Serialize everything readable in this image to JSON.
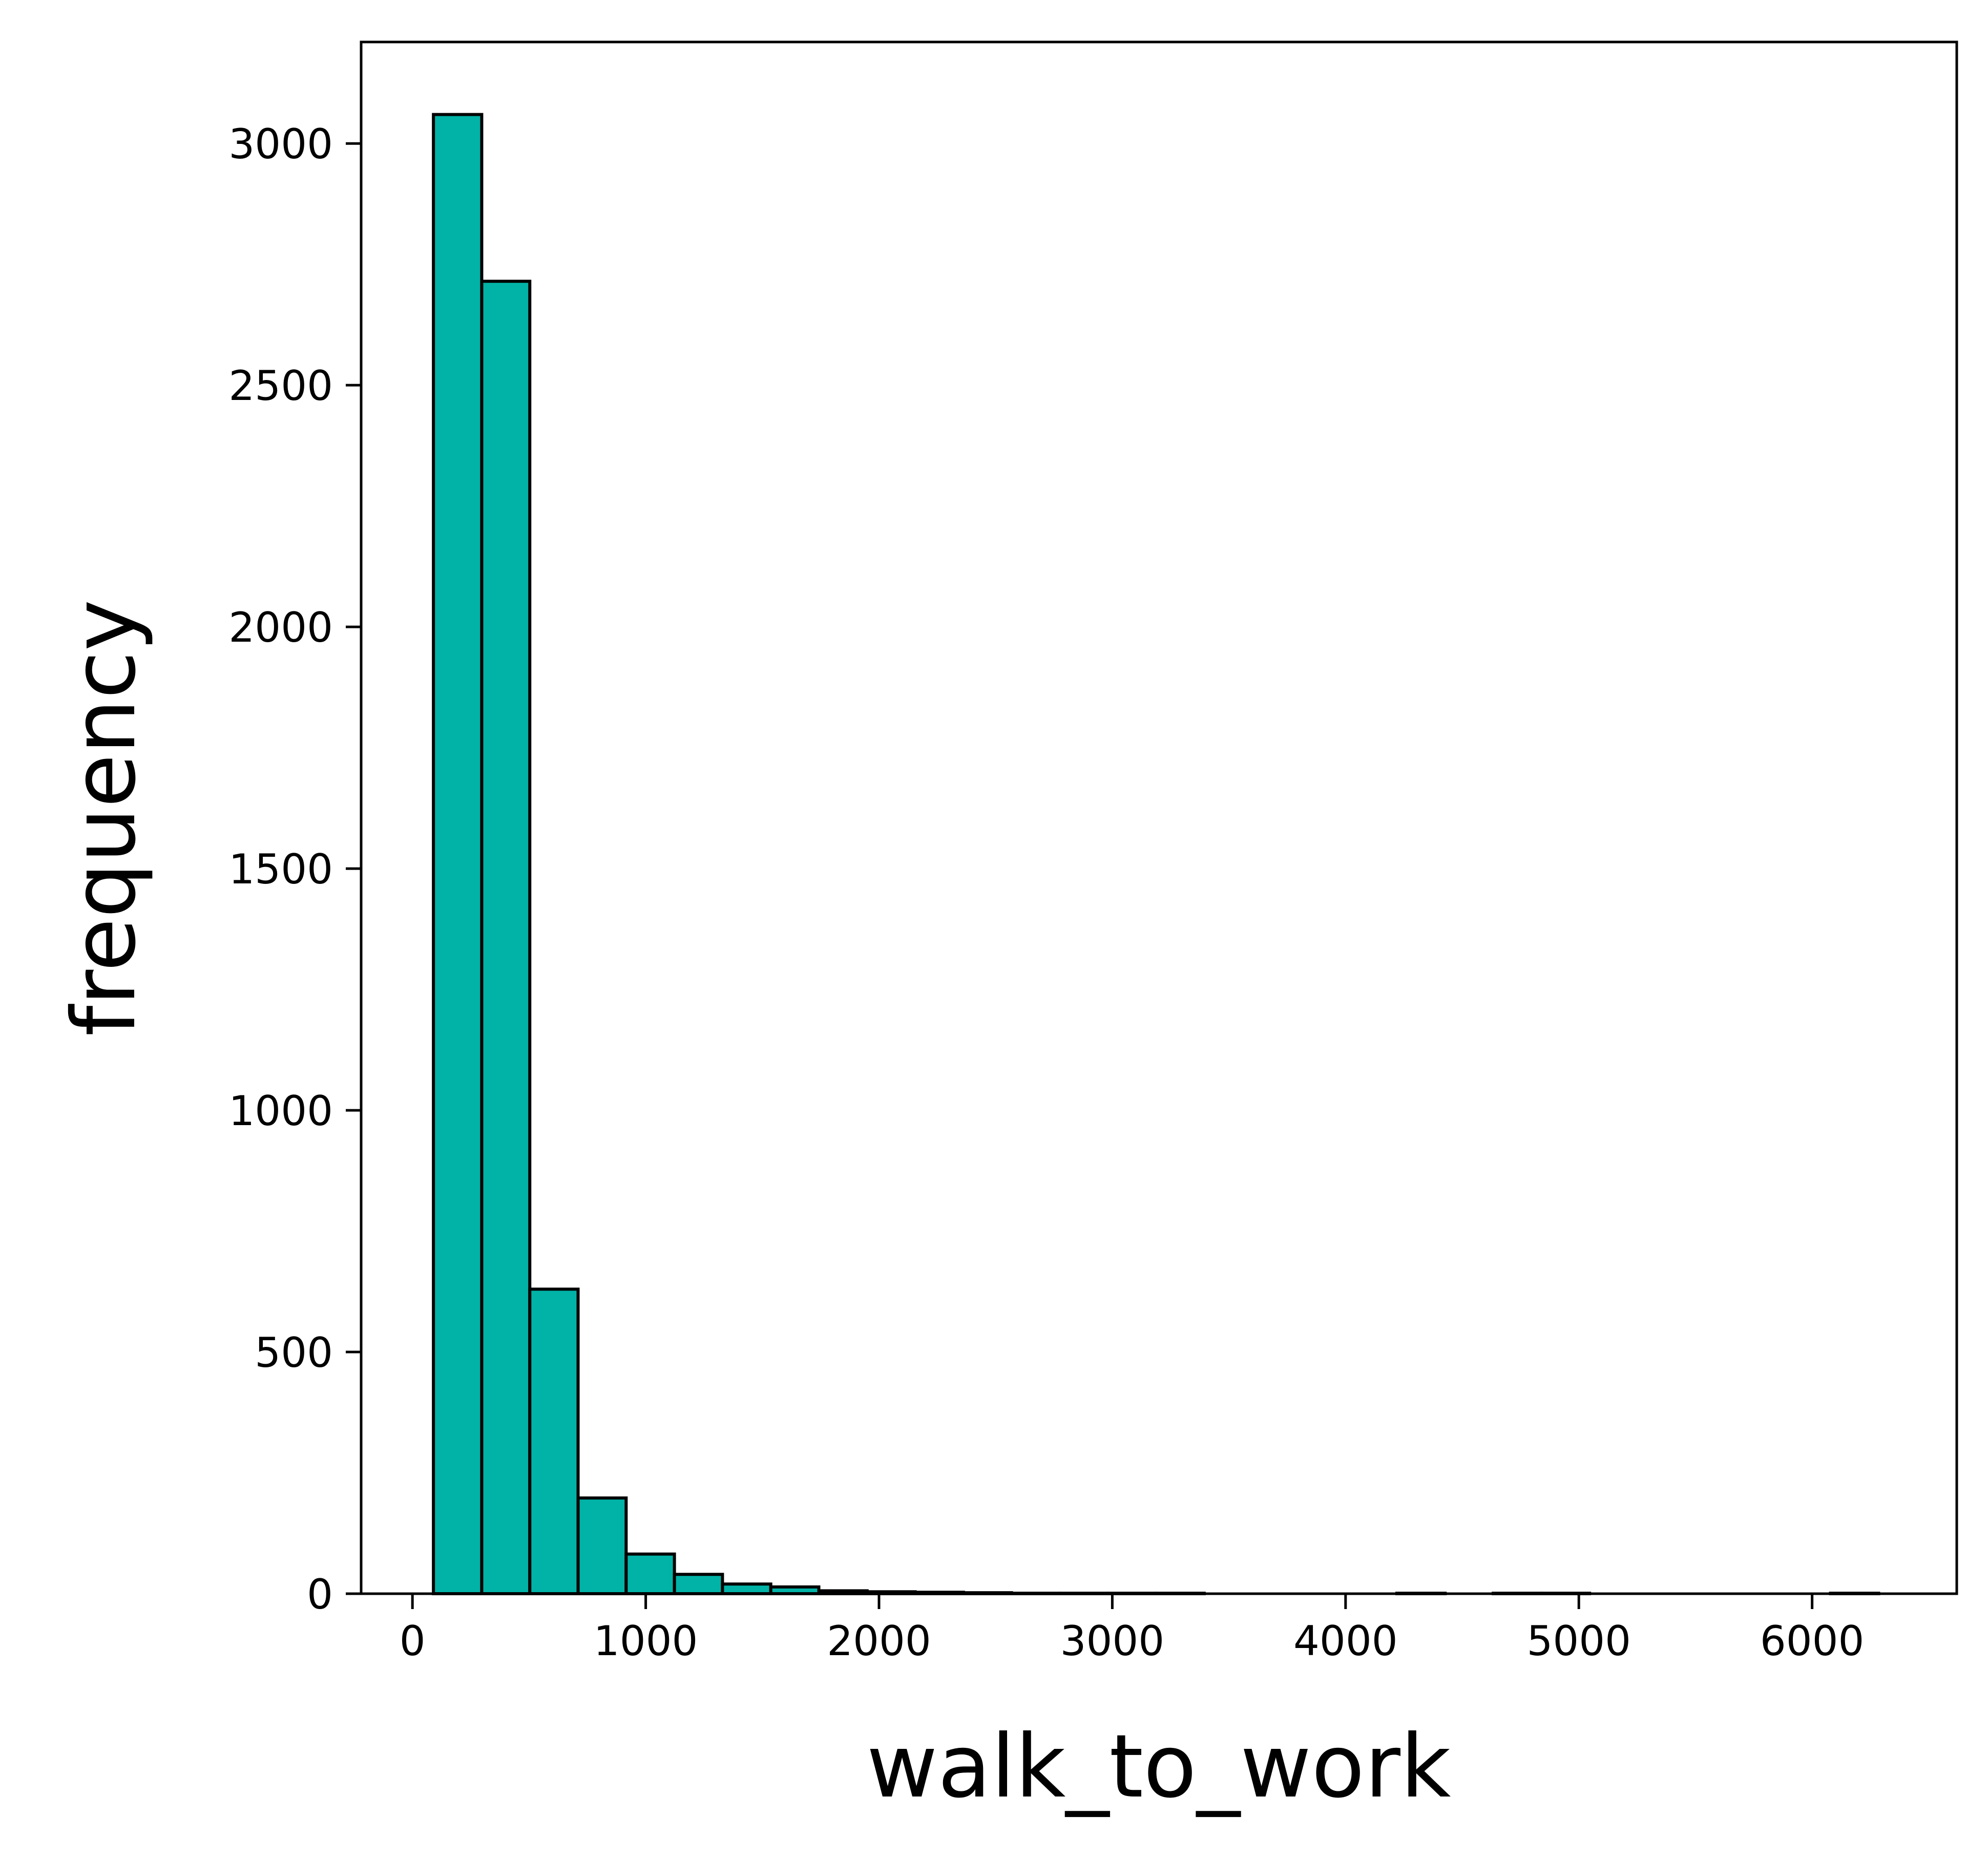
{
  "chart_data": {
    "type": "bar",
    "subtype": "histogram",
    "xlabel": "walk_to_work",
    "ylabel": "frequency",
    "xlim": [
      -220,
      6620
    ],
    "ylim": [
      0,
      3210
    ],
    "xticks": [
      0,
      1000,
      2000,
      3000,
      4000,
      5000,
      6000
    ],
    "yticks": [
      0,
      500,
      1000,
      1500,
      2000,
      2500,
      3000
    ],
    "grid": false,
    "legend": null,
    "bar_color": "#00b3a6",
    "edge_color": "#000000",
    "bins": [
      {
        "x0": 90,
        "x1": 297,
        "count": 3060
      },
      {
        "x0": 297,
        "x1": 503,
        "count": 2715
      },
      {
        "x0": 503,
        "x1": 710,
        "count": 630
      },
      {
        "x0": 710,
        "x1": 916,
        "count": 198
      },
      {
        "x0": 916,
        "x1": 1123,
        "count": 82
      },
      {
        "x0": 1123,
        "x1": 1329,
        "count": 40
      },
      {
        "x0": 1329,
        "x1": 1536,
        "count": 20
      },
      {
        "x0": 1536,
        "x1": 1742,
        "count": 14
      },
      {
        "x0": 1742,
        "x1": 1949,
        "count": 6
      },
      {
        "x0": 1949,
        "x1": 2155,
        "count": 4
      },
      {
        "x0": 2155,
        "x1": 2362,
        "count": 3
      },
      {
        "x0": 2362,
        "x1": 2568,
        "count": 2
      },
      {
        "x0": 2568,
        "x1": 2775,
        "count": 1
      },
      {
        "x0": 2775,
        "x1": 2981,
        "count": 1
      },
      {
        "x0": 2981,
        "x1": 3188,
        "count": 1
      },
      {
        "x0": 3188,
        "x1": 3394,
        "count": 1
      },
      {
        "x0": 3394,
        "x1": 3601,
        "count": 0
      },
      {
        "x0": 3601,
        "x1": 3807,
        "count": 0
      },
      {
        "x0": 3807,
        "x1": 4014,
        "count": 0
      },
      {
        "x0": 4014,
        "x1": 4220,
        "count": 0
      },
      {
        "x0": 4220,
        "x1": 4427,
        "count": 1
      },
      {
        "x0": 4427,
        "x1": 4633,
        "count": 0
      },
      {
        "x0": 4633,
        "x1": 4840,
        "count": 1
      },
      {
        "x0": 4840,
        "x1": 5046,
        "count": 1
      },
      {
        "x0": 5046,
        "x1": 5253,
        "count": 0
      },
      {
        "x0": 5253,
        "x1": 5459,
        "count": 0
      },
      {
        "x0": 5459,
        "x1": 5666,
        "count": 0
      },
      {
        "x0": 5666,
        "x1": 5872,
        "count": 0
      },
      {
        "x0": 5872,
        "x1": 6079,
        "count": 0
      },
      {
        "x0": 6079,
        "x1": 6285,
        "count": 1
      }
    ]
  }
}
